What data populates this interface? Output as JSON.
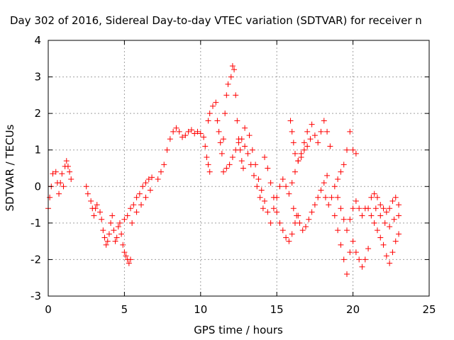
{
  "chart_data": {
    "type": "scatter",
    "title": "Day 302 of 2016, Sidereal Day-to-day VTEC variation (SDTVAR) for receiver n",
    "xlabel": "GPS time / hours",
    "ylabel": "SDTVAR / TECUs",
    "xlim": [
      0,
      25
    ],
    "ylim": [
      -3,
      4
    ],
    "x_ticks": [
      "0",
      "5",
      "10",
      "15",
      "20",
      "25"
    ],
    "y_ticks": [
      "-3",
      "-2",
      "-1",
      "0",
      "1",
      "2",
      "3",
      "4"
    ],
    "grid": true,
    "legend": "none",
    "marker": "plus",
    "series_color": "#ff0000",
    "series": [
      {
        "points": [
          [
            0.0,
            -0.6
          ],
          [
            0.1,
            -0.3
          ],
          [
            0.2,
            0.0
          ],
          [
            0.3,
            0.35
          ],
          [
            0.5,
            0.4
          ],
          [
            0.6,
            0.1
          ],
          [
            0.7,
            -0.2
          ],
          [
            0.8,
            0.1
          ],
          [
            0.9,
            0.35
          ],
          [
            1.0,
            0.0
          ],
          [
            1.1,
            0.55
          ],
          [
            1.2,
            0.7
          ],
          [
            1.3,
            0.55
          ],
          [
            1.4,
            0.4
          ],
          [
            1.5,
            0.2
          ],
          [
            2.5,
            0.0
          ],
          [
            2.6,
            -0.2
          ],
          [
            2.8,
            -0.4
          ],
          [
            2.9,
            -0.6
          ],
          [
            3.0,
            -0.8
          ],
          [
            3.1,
            -0.6
          ],
          [
            3.2,
            -0.5
          ],
          [
            3.4,
            -0.7
          ],
          [
            3.5,
            -0.9
          ],
          [
            3.6,
            -1.2
          ],
          [
            3.7,
            -1.4
          ],
          [
            3.8,
            -1.6
          ],
          [
            3.9,
            -1.5
          ],
          [
            4.0,
            -1.3
          ],
          [
            4.1,
            -1.0
          ],
          [
            4.2,
            -0.8
          ],
          [
            4.3,
            -1.2
          ],
          [
            4.4,
            -1.5
          ],
          [
            4.5,
            -1.4
          ],
          [
            4.6,
            -1.1
          ],
          [
            4.7,
            -1.0
          ],
          [
            4.8,
            -1.3
          ],
          [
            4.9,
            -1.6
          ],
          [
            5.0,
            -1.8
          ],
          [
            5.1,
            -1.9
          ],
          [
            5.2,
            -2.0
          ],
          [
            5.3,
            -2.1
          ],
          [
            5.4,
            -2.0
          ],
          [
            5.0,
            -0.9
          ],
          [
            5.2,
            -0.8
          ],
          [
            5.4,
            -0.6
          ],
          [
            5.6,
            -0.5
          ],
          [
            5.8,
            -0.3
          ],
          [
            6.0,
            -0.2
          ],
          [
            6.2,
            0.0
          ],
          [
            6.4,
            0.1
          ],
          [
            6.6,
            0.2
          ],
          [
            6.8,
            0.25
          ],
          [
            5.5,
            -1.0
          ],
          [
            5.8,
            -0.7
          ],
          [
            6.1,
            -0.5
          ],
          [
            6.4,
            -0.3
          ],
          [
            6.7,
            -0.1
          ],
          [
            7.2,
            0.2
          ],
          [
            7.4,
            0.4
          ],
          [
            7.6,
            0.6
          ],
          [
            7.8,
            1.0
          ],
          [
            8.0,
            1.3
          ],
          [
            8.2,
            1.5
          ],
          [
            8.4,
            1.6
          ],
          [
            8.6,
            1.5
          ],
          [
            8.8,
            1.35
          ],
          [
            9.0,
            1.4
          ],
          [
            9.2,
            1.5
          ],
          [
            9.4,
            1.55
          ],
          [
            9.6,
            1.45
          ],
          [
            9.8,
            1.5
          ],
          [
            10.0,
            1.45
          ],
          [
            10.2,
            1.35
          ],
          [
            10.3,
            1.1
          ],
          [
            10.4,
            0.8
          ],
          [
            10.5,
            0.6
          ],
          [
            10.6,
            0.4
          ],
          [
            10.5,
            1.8
          ],
          [
            10.6,
            2.0
          ],
          [
            10.8,
            2.2
          ],
          [
            11.0,
            2.3
          ],
          [
            11.1,
            1.8
          ],
          [
            11.2,
            1.5
          ],
          [
            11.3,
            1.2
          ],
          [
            11.4,
            0.9
          ],
          [
            11.5,
            1.3
          ],
          [
            11.6,
            2.0
          ],
          [
            11.7,
            2.5
          ],
          [
            11.8,
            2.8
          ],
          [
            12.0,
            3.0
          ],
          [
            12.1,
            3.3
          ],
          [
            12.2,
            3.2
          ],
          [
            12.3,
            2.5
          ],
          [
            12.4,
            1.8
          ],
          [
            12.5,
            1.3
          ],
          [
            12.6,
            1.0
          ],
          [
            12.7,
            0.7
          ],
          [
            12.8,
            0.5
          ],
          [
            11.5,
            0.4
          ],
          [
            11.7,
            0.5
          ],
          [
            11.9,
            0.6
          ],
          [
            12.1,
            0.8
          ],
          [
            12.3,
            1.0
          ],
          [
            12.5,
            1.2
          ],
          [
            12.7,
            1.3
          ],
          [
            12.9,
            1.1
          ],
          [
            13.1,
            0.9
          ],
          [
            13.3,
            0.6
          ],
          [
            13.5,
            0.3
          ],
          [
            13.7,
            0.0
          ],
          [
            13.9,
            -0.3
          ],
          [
            14.1,
            -0.6
          ],
          [
            12.9,
            1.6
          ],
          [
            13.2,
            1.4
          ],
          [
            13.4,
            1.0
          ],
          [
            13.6,
            0.6
          ],
          [
            13.8,
            0.2
          ],
          [
            14.0,
            -0.1
          ],
          [
            14.2,
            -0.4
          ],
          [
            14.4,
            -0.7
          ],
          [
            14.6,
            -1.0
          ],
          [
            14.8,
            -0.6
          ],
          [
            15.0,
            -0.3
          ],
          [
            15.2,
            0.0
          ],
          [
            14.2,
            0.8
          ],
          [
            14.4,
            0.5
          ],
          [
            14.6,
            0.1
          ],
          [
            14.8,
            -0.3
          ],
          [
            15.0,
            -0.7
          ],
          [
            15.2,
            -1.0
          ],
          [
            15.4,
            -1.2
          ],
          [
            15.6,
            -1.4
          ],
          [
            15.8,
            -1.5
          ],
          [
            16.0,
            -1.3
          ],
          [
            16.2,
            -1.0
          ],
          [
            16.4,
            -0.8
          ],
          [
            15.4,
            0.2
          ],
          [
            15.6,
            0.0
          ],
          [
            15.8,
            -0.2
          ],
          [
            16.0,
            0.1
          ],
          [
            16.2,
            0.4
          ],
          [
            16.4,
            0.7
          ],
          [
            16.6,
            0.9
          ],
          [
            16.8,
            1.2
          ],
          [
            17.0,
            1.5
          ],
          [
            17.2,
            1.3
          ],
          [
            15.9,
            1.8
          ],
          [
            16.0,
            1.5
          ],
          [
            16.1,
            1.2
          ],
          [
            16.2,
            0.9
          ],
          [
            16.4,
            0.7
          ],
          [
            16.6,
            0.8
          ],
          [
            16.8,
            1.0
          ],
          [
            17.0,
            1.1
          ],
          [
            16.1,
            -0.6
          ],
          [
            16.3,
            -0.8
          ],
          [
            16.5,
            -1.0
          ],
          [
            16.7,
            -1.2
          ],
          [
            16.9,
            -1.1
          ],
          [
            17.1,
            -0.9
          ],
          [
            17.3,
            -0.7
          ],
          [
            17.5,
            -0.5
          ],
          [
            17.7,
            -0.3
          ],
          [
            17.9,
            -0.1
          ],
          [
            18.1,
            0.1
          ],
          [
            18.3,
            0.3
          ],
          [
            17.3,
            1.7
          ],
          [
            17.5,
            1.4
          ],
          [
            17.7,
            1.2
          ],
          [
            17.9,
            1.5
          ],
          [
            18.1,
            1.8
          ],
          [
            18.3,
            1.5
          ],
          [
            18.5,
            1.1
          ],
          [
            18.2,
            -0.3
          ],
          [
            18.4,
            -0.5
          ],
          [
            18.6,
            -0.3
          ],
          [
            18.8,
            0.0
          ],
          [
            19.0,
            0.2
          ],
          [
            19.2,
            0.4
          ],
          [
            19.4,
            0.6
          ],
          [
            19.6,
            1.0
          ],
          [
            19.8,
            1.5
          ],
          [
            20.0,
            1.0
          ],
          [
            20.2,
            0.9
          ],
          [
            18.8,
            -0.8
          ],
          [
            19.0,
            -1.2
          ],
          [
            19.2,
            -1.6
          ],
          [
            19.4,
            -2.0
          ],
          [
            19.6,
            -2.4
          ],
          [
            19.8,
            -1.8
          ],
          [
            20.0,
            -1.5
          ],
          [
            20.2,
            -1.8
          ],
          [
            20.4,
            -2.0
          ],
          [
            20.6,
            -2.2
          ],
          [
            20.8,
            -2.0
          ],
          [
            21.0,
            -1.7
          ],
          [
            19.0,
            -0.3
          ],
          [
            19.2,
            -0.6
          ],
          [
            19.4,
            -0.9
          ],
          [
            19.6,
            -1.2
          ],
          [
            19.8,
            -0.9
          ],
          [
            20.0,
            -0.6
          ],
          [
            20.2,
            -0.4
          ],
          [
            20.4,
            -0.6
          ],
          [
            20.6,
            -0.8
          ],
          [
            20.8,
            -0.6
          ],
          [
            21.0,
            -0.6
          ],
          [
            21.2,
            -0.8
          ],
          [
            21.4,
            -1.0
          ],
          [
            21.6,
            -1.2
          ],
          [
            21.8,
            -1.4
          ],
          [
            22.0,
            -1.6
          ],
          [
            22.2,
            -1.9
          ],
          [
            22.4,
            -2.1
          ],
          [
            22.6,
            -1.8
          ],
          [
            22.8,
            -1.5
          ],
          [
            23.0,
            -1.3
          ],
          [
            21.2,
            -0.3
          ],
          [
            21.4,
            -0.2
          ],
          [
            21.6,
            -0.3
          ],
          [
            21.8,
            -0.5
          ],
          [
            22.0,
            -0.6
          ],
          [
            22.2,
            -0.7
          ],
          [
            22.4,
            -0.6
          ],
          [
            22.6,
            -0.4
          ],
          [
            22.8,
            -0.3
          ],
          [
            23.0,
            -0.5
          ],
          [
            21.5,
            -0.6
          ],
          [
            21.8,
            -0.8
          ],
          [
            22.1,
            -1.0
          ],
          [
            22.4,
            -1.1
          ],
          [
            22.7,
            -0.9
          ],
          [
            23.0,
            -0.8
          ]
        ]
      }
    ]
  }
}
